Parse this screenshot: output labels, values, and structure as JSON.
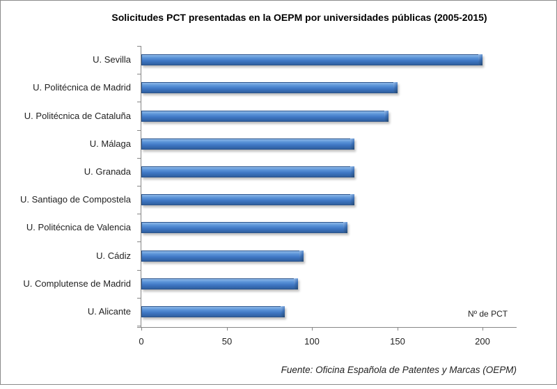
{
  "chart_data": {
    "type": "bar",
    "orientation": "horizontal",
    "title": "Solicitudes PCT presentadas en la OEPM por universidades públicas (2005-2015)",
    "categories": [
      "U. Sevilla",
      "U. Politécnica de Madrid",
      "U. Politécnica de Cataluña",
      "U. Málaga",
      "U. Granada",
      "U. Santiago de Compostela",
      "U. Politécnica de Valencia",
      "U. Cádiz",
      "U. Complutense de Madrid",
      "U. Alicante"
    ],
    "values": [
      200,
      150,
      145,
      125,
      125,
      125,
      121,
      95,
      92,
      84
    ],
    "xlabel": "Nº de PCT",
    "ylabel": "",
    "xlim": [
      0,
      220
    ],
    "xticks": [
      "0",
      "50",
      "100",
      "150",
      "200"
    ],
    "grid": false,
    "legend": null,
    "bar_color": "#4a7fc6",
    "source": "Fuente: Oficina Española de Patentes y Marcas (OEPM)"
  },
  "title": "Solicitudes PCT presentadas en la OEPM por universidades públicas (2005-2015)",
  "unit_label": "Nº de PCT",
  "source": "Fuente: Oficina Española de Patentes y Marcas (OEPM)",
  "xticks": [
    "0",
    "50",
    "100",
    "150",
    "200"
  ],
  "labels": [
    "U. Sevilla",
    "U. Politécnica de Madrid",
    "U. Politécnica de Cataluña",
    "U. Málaga",
    "U. Granada",
    "U. Santiago de Compostela",
    "U. Politécnica de Valencia",
    "U. Cádiz",
    "U. Complutense de Madrid",
    "U. Alicante"
  ]
}
